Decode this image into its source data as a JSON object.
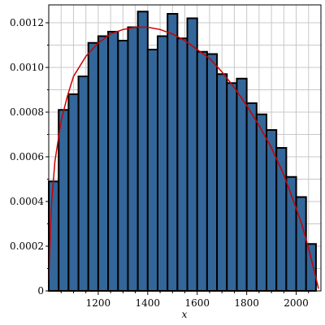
{
  "chart_data": {
    "type": "bar",
    "title": "",
    "xlabel": "x",
    "ylabel": "",
    "xlim": [
      1000,
      2100
    ],
    "ylim": [
      0,
      0.00128
    ],
    "grid": true,
    "bin_width": 40,
    "bins_start": [
      1000,
      1040,
      1080,
      1120,
      1160,
      1200,
      1240,
      1280,
      1320,
      1360,
      1400,
      1440,
      1480,
      1520,
      1560,
      1600,
      1640,
      1680,
      1720,
      1760,
      1800,
      1840,
      1880,
      1920,
      1960,
      2000,
      2040
    ],
    "values": [
      0.00049,
      0.00081,
      0.00088,
      0.00096,
      0.00111,
      0.00114,
      0.00116,
      0.00112,
      0.00118,
      0.00125,
      0.00108,
      0.00114,
      0.00124,
      0.00113,
      0.00122,
      0.00107,
      0.00106,
      0.00097,
      0.00093,
      0.00095,
      0.00084,
      0.00079,
      0.00072,
      0.00064,
      0.00051,
      0.00042,
      0.00021
    ],
    "density_curve": {
      "x": [
        1000,
        1010,
        1025,
        1050,
        1075,
        1100,
        1150,
        1200,
        1250,
        1300,
        1350,
        1400,
        1450,
        1500,
        1550,
        1600,
        1650,
        1700,
        1750,
        1800,
        1850,
        1900,
        1950,
        2000,
        2025,
        2050,
        2075,
        2090
      ],
      "y": [
        5e-05,
        0.00037,
        0.00058,
        0.00076,
        0.00087,
        0.00096,
        0.00105,
        0.00111,
        0.00115,
        0.00117,
        0.00118,
        0.00118,
        0.00117,
        0.00115,
        0.00112,
        0.00108,
        0.00104,
        0.00098,
        0.00091,
        0.00083,
        0.00074,
        0.00064,
        0.00052,
        0.00037,
        0.00029,
        0.00019,
        8e-05,
        1e-05
      ]
    },
    "x_ticks": [
      1200,
      1400,
      1600,
      1800,
      2000
    ],
    "x_tick_labels": [
      "1200",
      "1400",
      "1600",
      "1800",
      "2000"
    ],
    "y_ticks": [
      0,
      0.0002,
      0.0004,
      0.0006,
      0.0008,
      0.001,
      0.0012
    ],
    "y_tick_labels": [
      "0",
      "0.0002",
      "0.0004",
      "0.0006",
      "0.0008",
      "0.0010",
      "0.0012"
    ],
    "colors": {
      "bar_fill": "#336699",
      "bar_stroke": "#000000",
      "curve": "#cc0000",
      "grid": "#c8c8c8",
      "axis": "#000000"
    }
  }
}
